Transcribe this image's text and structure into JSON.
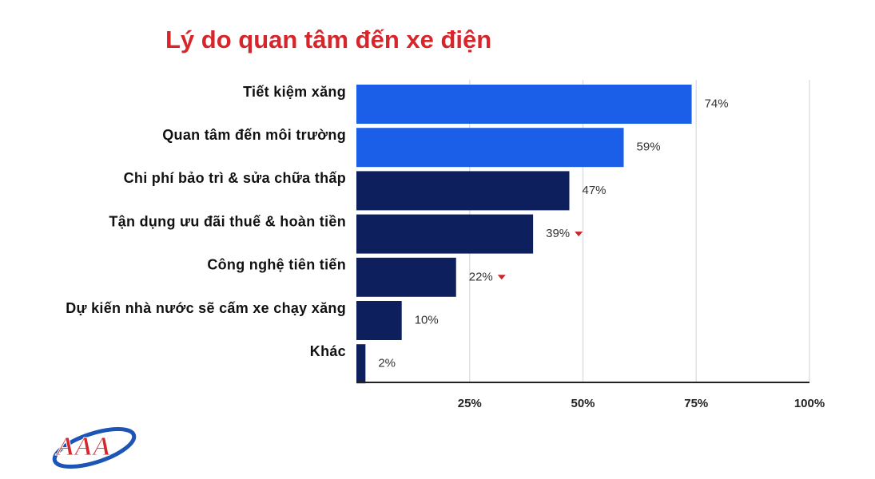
{
  "chart_data": {
    "type": "hbar",
    "title": "Lý do quan tâm đến xe điện",
    "categories": [
      "Tiết kiệm xăng",
      "Quan tâm đến môi trường",
      "Chi phí bảo trì & sửa chữa thấp",
      "Tận dụng ưu đãi thuế & hoàn tiền",
      "Công nghệ tiên tiến",
      "Dự kiến nhà nước sẽ cấm xe chạy xăng",
      "Khác"
    ],
    "values": [
      74,
      59,
      47,
      39,
      22,
      10,
      2
    ],
    "value_labels": [
      "74%",
      "59%",
      "47%",
      "39%",
      "22%",
      "10%",
      "2%"
    ],
    "colors": [
      "#1b5ee8",
      "#1b5ee8",
      "#0e1f5e",
      "#0e1f5e",
      "#0e1f5e",
      "#0e1f5e",
      "#0e1f5e"
    ],
    "down_arrow": [
      false,
      false,
      false,
      true,
      true,
      false,
      false
    ],
    "down_arrow_color": "#c8262c",
    "title_color": "#d6262c",
    "xlim": [
      0,
      100
    ],
    "xticks": [
      {
        "value": 25,
        "label": "25%"
      },
      {
        "value": 50,
        "label": "50%"
      },
      {
        "value": 75,
        "label": "75%"
      },
      {
        "value": 100,
        "label": "100%"
      }
    ],
    "grid": true
  },
  "logo": "AAA"
}
